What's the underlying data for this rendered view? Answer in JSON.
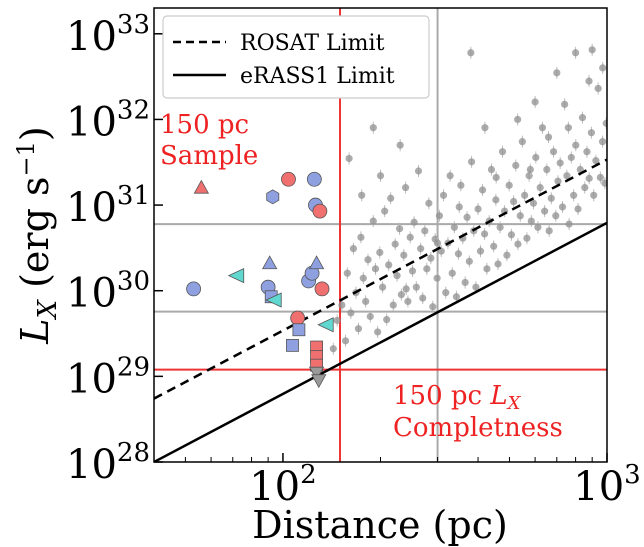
{
  "chart_data": {
    "type": "scatter",
    "xlabel": "Distance (pc)",
    "ylabel_main": "L",
    "ylabel_sub": "X",
    "ylabel_units": " (erg s",
    "ylabel_units_sup": "−1",
    "ylabel_units_close": ")",
    "x_scale": "log",
    "y_scale": "log",
    "xlim": [
      40,
      1000
    ],
    "ylim": [
      1e+28,
      2e+33
    ],
    "x_ticks": [
      {
        "value": 100,
        "base": "10",
        "exp": "2"
      },
      {
        "value": 1000,
        "base": "10",
        "exp": "3"
      }
    ],
    "y_ticks": [
      {
        "value": 1e+28,
        "base": "10",
        "exp": "28"
      },
      {
        "value": 1e+29,
        "base": "10",
        "exp": "29"
      },
      {
        "value": 1e+30,
        "base": "10",
        "exp": "30"
      },
      {
        "value": 1e+31,
        "base": "10",
        "exp": "31"
      },
      {
        "value": 1e+32,
        "base": "10",
        "exp": "32"
      },
      {
        "value": 1e+33,
        "base": "10",
        "exp": "33"
      }
    ],
    "legend": {
      "position": "top-left",
      "entries": [
        {
          "label": "ROSAT Limit",
          "style": "dashed"
        },
        {
          "label": "eRASS1 Limit",
          "style": "solid"
        }
      ]
    },
    "limits": {
      "rosat": {
        "x": [
          40,
          1000
        ],
        "y": [
          5.5e+28,
          3.4e+31
        ]
      },
      "erass1": {
        "x": [
          40,
          1000
        ],
        "y": [
          1e+28,
          6.2e+30
        ]
      }
    },
    "reference_lines": {
      "red_vertical_x": 150,
      "red_horizontal_y": 1.2e+29,
      "gray_vertical_x": 300,
      "gray_horizontal_y": [
        6e+30,
        5.7e+29
      ]
    },
    "annotations": {
      "sample": [
        "150 pc",
        "Sample"
      ],
      "completeness_line1_text": "150 pc ",
      "completeness_line1_var": "L",
      "completeness_line1_sub": "X",
      "completeness_line2": "Completness"
    },
    "colors": {
      "red_line": "#ee3333",
      "gray_line": "#aaaaaa",
      "background_points": "#909090",
      "blue": "#8ea0e0",
      "red": "#f07070",
      "cyan": "#60d8d0",
      "gray_marker": "#9a9a9a"
    },
    "highlighted_points": [
      {
        "x": 53,
        "y": 1.05e+30,
        "marker": "circle",
        "color": "blue"
      },
      {
        "x": 56,
        "y": 1.6e+31,
        "marker": "triangle-up",
        "color": "red"
      },
      {
        "x": 72,
        "y": 1.5e+30,
        "marker": "triangle-left",
        "color": "cyan"
      },
      {
        "x": 90,
        "y": 1.1e+30,
        "marker": "circle",
        "color": "blue"
      },
      {
        "x": 91,
        "y": 2.1e+30,
        "marker": "triangle-up",
        "color": "blue"
      },
      {
        "x": 92,
        "y": 8.5e+29,
        "marker": "square",
        "color": "blue"
      },
      {
        "x": 94,
        "y": 7.8e+29,
        "marker": "triangle-left",
        "color": "cyan"
      },
      {
        "x": 93,
        "y": 1.25e+31,
        "marker": "hexagon",
        "color": "blue"
      },
      {
        "x": 104,
        "y": 2e+31,
        "marker": "circle",
        "color": "red"
      },
      {
        "x": 111,
        "y": 4.8e+29,
        "marker": "circle",
        "color": "red"
      },
      {
        "x": 112,
        "y": 3.5e+29,
        "marker": "square",
        "color": "blue"
      },
      {
        "x": 107,
        "y": 2.3e+29,
        "marker": "square",
        "color": "blue"
      },
      {
        "x": 120,
        "y": 1.3e+30,
        "marker": "circle",
        "color": "blue"
      },
      {
        "x": 123,
        "y": 1.6e+30,
        "marker": "circle",
        "color": "blue"
      },
      {
        "x": 125,
        "y": 2e+31,
        "marker": "circle",
        "color": "blue"
      },
      {
        "x": 126,
        "y": 1e+31,
        "marker": "circle",
        "color": "blue"
      },
      {
        "x": 127,
        "y": 2.1e+30,
        "marker": "triangle-up",
        "color": "blue"
      },
      {
        "x": 130,
        "y": 8.5e+30,
        "marker": "circle",
        "color": "red"
      },
      {
        "x": 132,
        "y": 1.05e+30,
        "marker": "circle",
        "color": "red"
      },
      {
        "x": 136,
        "y": 4e+29,
        "marker": "triangle-left",
        "color": "cyan"
      },
      {
        "x": 127,
        "y": 2.2e+29,
        "marker": "square",
        "color": "red"
      },
      {
        "x": 127,
        "y": 1.7e+29,
        "marker": "square",
        "color": "red"
      },
      {
        "x": 127,
        "y": 1.35e+29,
        "marker": "square",
        "color": "red"
      },
      {
        "x": 127,
        "y": 1.1e+29,
        "marker": "triangle-down",
        "color": "gray_marker"
      },
      {
        "x": 129,
        "y": 9e+28,
        "marker": "triangle-down",
        "color": "gray_marker"
      }
    ],
    "background_points": [
      [
        143,
        2.1e+29
      ],
      [
        147,
        4.5e+29
      ],
      [
        152,
        6.8e+29
      ],
      [
        156,
        2.6e+29
      ],
      [
        158,
        1.6e+30
      ],
      [
        162,
        5.5e+29
      ],
      [
        165,
        3.1e+30
      ],
      [
        168,
        9.5e+29
      ],
      [
        171,
        3.6e+29
      ],
      [
        174,
        4.2e+30
      ],
      [
        177,
        1.4e+30
      ],
      [
        180,
        7.5e+29
      ],
      [
        183,
        2.3e+30
      ],
      [
        186,
        5e+29
      ],
      [
        190,
        6.5e+30
      ],
      [
        193,
        1.8e+30
      ],
      [
        196,
        3.3e+29
      ],
      [
        199,
        2.8e+30
      ],
      [
        203,
        1.1e+30
      ],
      [
        206,
        8.5e+30
      ],
      [
        209,
        4.6e+29
      ],
      [
        212,
        2e+30
      ],
      [
        215,
        1.2e+31
      ],
      [
        219,
        6.8e+29
      ],
      [
        222,
        3.5e+30
      ],
      [
        225,
        1.5e+30
      ],
      [
        229,
        5.3e+30
      ],
      [
        232,
        9e+29
      ],
      [
        236,
        2.6e+30
      ],
      [
        239,
        1.6e+31
      ],
      [
        243,
        7.5e+29
      ],
      [
        247,
        4.2e+30
      ],
      [
        251,
        1.7e+30
      ],
      [
        254,
        6.3e+30
      ],
      [
        258,
        1.1e+30
      ],
      [
        262,
        2.5e+31
      ],
      [
        266,
        3.1e+30
      ],
      [
        270,
        8.2e+29
      ],
      [
        274,
        5e+30
      ],
      [
        278,
        1.8e+30
      ],
      [
        282,
        1.05e+31
      ],
      [
        286,
        2.4e+30
      ],
      [
        290,
        6.5e+29
      ],
      [
        295,
        4e+30
      ],
      [
        299,
        1.4e+30
      ],
      [
        304,
        7.5e+30
      ],
      [
        308,
        2.9e+30
      ],
      [
        313,
        1.3e+31
      ],
      [
        318,
        9.5e+29
      ],
      [
        323,
        3.6e+30
      ],
      [
        328,
        2.2e+31
      ],
      [
        333,
        1.6e+30
      ],
      [
        338,
        5.5e+30
      ],
      [
        343,
        8.5e+29
      ],
      [
        348,
        2.7e+30
      ],
      [
        354,
        1.7e+31
      ],
      [
        359,
        4.1e+30
      ],
      [
        365,
        1.25e+30
      ],
      [
        370,
        7.2e+30
      ],
      [
        376,
        2.2e+30
      ],
      [
        382,
        3.2e+31
      ],
      [
        388,
        5e+30
      ],
      [
        394,
        1.1e+30
      ],
      [
        400,
        9e+30
      ],
      [
        407,
        2.9e+30
      ],
      [
        413,
        1.5e+31
      ],
      [
        419,
        4.6e+30
      ],
      [
        426,
        1.8e+30
      ],
      [
        433,
        6.5e+30
      ],
      [
        440,
        2.6e+31
      ],
      [
        447,
        3.3e+30
      ],
      [
        454,
        1.15e+31
      ],
      [
        461,
        2.05e+30
      ],
      [
        468,
        5.5e+30
      ],
      [
        476,
        4.2e+31
      ],
      [
        483,
        8.5e+30
      ],
      [
        491,
        2.6e+30
      ],
      [
        499,
        1.7e+31
      ],
      [
        507,
        4.5e+30
      ],
      [
        515,
        1.1e+31
      ],
      [
        523,
        2.9e+31
      ],
      [
        531,
        3.5e+30
      ],
      [
        540,
        7.5e+30
      ],
      [
        548,
        5.5e+31
      ],
      [
        557,
        1.3e+31
      ],
      [
        566,
        4.1e+30
      ],
      [
        575,
        2.2e+31
      ],
      [
        584,
        6.5e+30
      ],
      [
        593,
        1.05e+31
      ],
      [
        603,
        3.6e+31
      ],
      [
        612,
        5.5e+30
      ],
      [
        622,
        1.6e+31
      ],
      [
        632,
        8e+31
      ],
      [
        642,
        8.5e+30
      ],
      [
        652,
        2.6e+31
      ],
      [
        663,
        5e+30
      ],
      [
        673,
        1.2e+31
      ],
      [
        684,
        4.2e+31
      ],
      [
        695,
        7.5e+30
      ],
      [
        706,
        1.9e+31
      ],
      [
        717,
        3.1e+31
      ],
      [
        729,
        9.5e+30
      ],
      [
        740,
        1.5e+32
      ],
      [
        752,
        2.2e+31
      ],
      [
        764,
        6e+30
      ],
      [
        776,
        3.6e+31
      ],
      [
        789,
        1.3e+31
      ],
      [
        801,
        5e+31
      ],
      [
        814,
        9e+30
      ],
      [
        827,
        2.6e+31
      ],
      [
        840,
        1.05e+32
      ],
      [
        854,
        1.6e+31
      ],
      [
        867,
        4.2e+31
      ],
      [
        881,
        2.05e+31
      ],
      [
        895,
        7e+31
      ],
      [
        910,
        1.3e+31
      ],
      [
        924,
        3.3e+31
      ],
      [
        939,
        2.3e+32
      ],
      [
        954,
        2.1e+31
      ],
      [
        969,
        5.5e+31
      ],
      [
        985,
        1.8e+31
      ],
      [
        995,
        9e+31
      ],
      [
        970,
        4e+32
      ],
      [
        900,
        6.5e+32
      ],
      [
        800,
        6e+32
      ],
      [
        700,
        3.5e+32
      ],
      [
        600,
        1.6e+32
      ],
      [
        530,
        1e+32
      ],
      [
        420,
        8e+31
      ],
      [
        380,
        6e+32
      ],
      [
        270,
        2.5e+32
      ],
      [
        230,
        5e+31
      ],
      [
        200,
        2.2e+31
      ],
      [
        175,
        1.3e+31
      ],
      [
        160,
        3.5e+31
      ],
      [
        190,
        8e+31
      ],
      [
        880,
        2.8e+32
      ],
      [
        760,
        8e+31
      ],
      [
        660,
        6.2e+31
      ],
      [
        580,
        2.6e+31
      ],
      [
        455,
        2.1e+31
      ],
      [
        350,
        9.5e+30
      ],
      [
        300,
        3.6e+30
      ],
      [
        240,
        1.05e+30
      ]
    ]
  }
}
